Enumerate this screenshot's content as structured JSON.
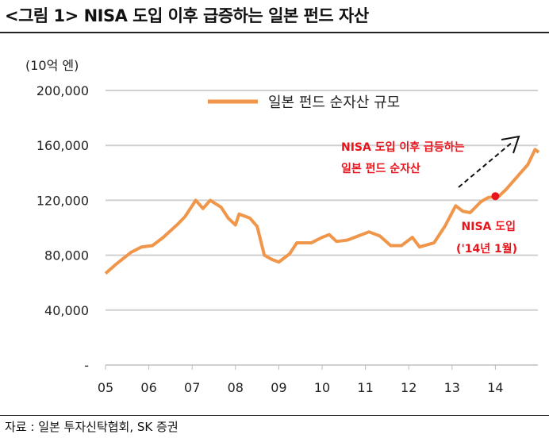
{
  "title": "<그림 1> NISA 도입 이후 급증하는 일본 펀드 자산",
  "source": "자료 : 일본 투자신탁협회, SK 증권",
  "chart_data": {
    "type": "line",
    "title": "",
    "unit_label": "(10억 엔)",
    "ylim": [
      0,
      200000
    ],
    "yticks": [
      0,
      40000,
      80000,
      120000,
      160000,
      200000
    ],
    "ytick_labels": [
      "-",
      "40,000",
      "80,000",
      "120,000",
      "160,000",
      "200,000"
    ],
    "xtick_labels": [
      "05",
      "06",
      "07",
      "08",
      "09",
      "10",
      "11",
      "12",
      "13",
      "14"
    ],
    "xlim": [
      "2005-01",
      "2015-01"
    ],
    "grid": true,
    "legend_position": "top-center",
    "colors": {
      "line": "#F0964A",
      "marker": "#E8141C",
      "annotation": "#E8141C",
      "arrow": "#111111"
    },
    "series": [
      {
        "name": "일본 펀드 순자산 규모",
        "x": [
          "2005-01",
          "2005-04",
          "2005-08",
          "2005-11",
          "2006-02",
          "2006-05",
          "2006-09",
          "2006-11",
          "2007-02",
          "2007-04",
          "2007-06",
          "2007-09",
          "2007-11",
          "2008-01",
          "2008-02",
          "2008-05",
          "2008-07",
          "2008-09",
          "2008-11",
          "2009-01",
          "2009-04",
          "2009-06",
          "2009-10",
          "2010-01",
          "2010-03",
          "2010-05",
          "2010-08",
          "2010-11",
          "2011-02",
          "2011-05",
          "2011-08",
          "2011-11",
          "2012-02",
          "2012-04",
          "2012-08",
          "2012-11",
          "2013-02",
          "2013-04",
          "2013-06",
          "2013-09",
          "2013-11",
          "2014-02",
          "2014-04",
          "2014-07",
          "2014-10",
          "2014-12",
          "2015-01"
        ],
        "values": [
          66700,
          73600,
          82000,
          86000,
          87000,
          93000,
          102600,
          108000,
          120000,
          114000,
          120000,
          115000,
          107000,
          102000,
          110000,
          107000,
          101000,
          80000,
          77000,
          75000,
          81000,
          89000,
          89000,
          93000,
          95000,
          90000,
          91000,
          94000,
          97000,
          94000,
          87000,
          87000,
          93000,
          86000,
          89000,
          101000,
          116000,
          112000,
          111000,
          119000,
          122000,
          123000,
          128000,
          137000,
          146000,
          157000,
          155000
        ]
      }
    ],
    "annotations": [
      {
        "text": "NISA 도입 이후 급등하는",
        "type": "label"
      },
      {
        "text": "일본 펀드 순자산",
        "type": "label"
      },
      {
        "text": "NISA 도입",
        "type": "label"
      },
      {
        "text": "('14년 1월)",
        "type": "label"
      }
    ],
    "marker": {
      "x": "2014-01",
      "y": 123000,
      "label": "NISA 도입"
    }
  }
}
